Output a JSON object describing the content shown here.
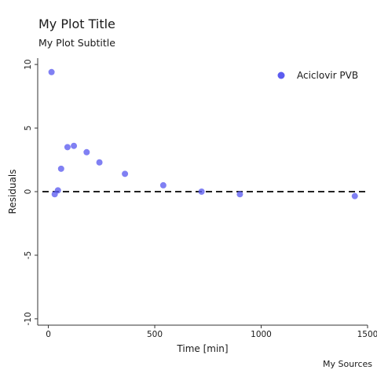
{
  "title": "My Plot Title",
  "subtitle": "My Plot Subtitle",
  "caption": "My Sources",
  "chart_data": {
    "type": "scatter",
    "xlabel": "Time [min]",
    "ylabel": "Residuals",
    "xlim": [
      -50,
      1500
    ],
    "ylim": [
      -10.5,
      10.5
    ],
    "xticks": [
      0,
      500,
      1000,
      1500
    ],
    "xtick_labels": [
      "0",
      "500",
      "1000",
      "1500"
    ],
    "yticks": [
      -10,
      -5,
      0,
      5,
      10
    ],
    "ytick_labels": [
      "-10",
      "-5",
      "0",
      "5",
      "10"
    ],
    "reference_line": {
      "y": 0,
      "style": "dashed"
    },
    "grid": false,
    "legend_position": "top-right",
    "series": [
      {
        "name": "Aciclovir PVB",
        "color": "#5c5cf0",
        "x": [
          15,
          30,
          45,
          60,
          90,
          120,
          180,
          240,
          360,
          540,
          720,
          900,
          1440
        ],
        "y": [
          9.4,
          -0.2,
          0.1,
          1.8,
          3.5,
          3.6,
          3.1,
          2.3,
          1.4,
          0.5,
          0.0,
          -0.2,
          -0.35
        ]
      }
    ]
  }
}
